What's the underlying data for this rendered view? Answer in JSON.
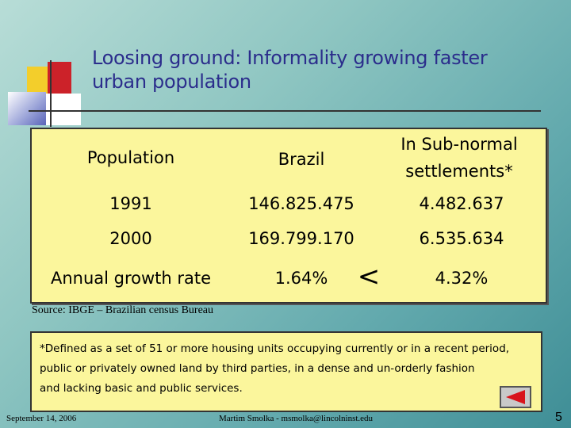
{
  "slide": {
    "title_line1": "Loosing ground: Informality growing faster",
    "title_line2": "urban population"
  },
  "table": {
    "headers": {
      "population": "Population",
      "brazil": "Brazil",
      "subnormal_line1": "In Sub-normal",
      "subnormal_line2": "settlements*"
    },
    "rows": [
      {
        "label": "1991",
        "brazil": "146.825.475",
        "subnormal": "4.482.637"
      },
      {
        "label": "2000",
        "brazil": "169.799.170",
        "subnormal": "6.535.634"
      },
      {
        "label": "Annual growth rate",
        "brazil": "1.64%",
        "comparator": "<",
        "subnormal": "4.32%"
      }
    ]
  },
  "source": "Source: IBGE – Brazilian census Bureau",
  "note": {
    "line1": "*Defined as a set of 51 or more housing units occupying currently or in a recent period,",
    "line2": "public or privately owned land by third parties, in a dense and un-orderly fashion",
    "line3": "and lacking basic and public services."
  },
  "footer": {
    "date": "September 14, 2006",
    "author": "Martim Smolka - msmolka@lincolninst.edu",
    "page_number": "5"
  },
  "icons": {
    "back_button": "left-triangle-icon"
  },
  "colors": {
    "title": "#2b2d8c",
    "table_background": "#fbf69c",
    "back_arrow": "#d8131b"
  }
}
